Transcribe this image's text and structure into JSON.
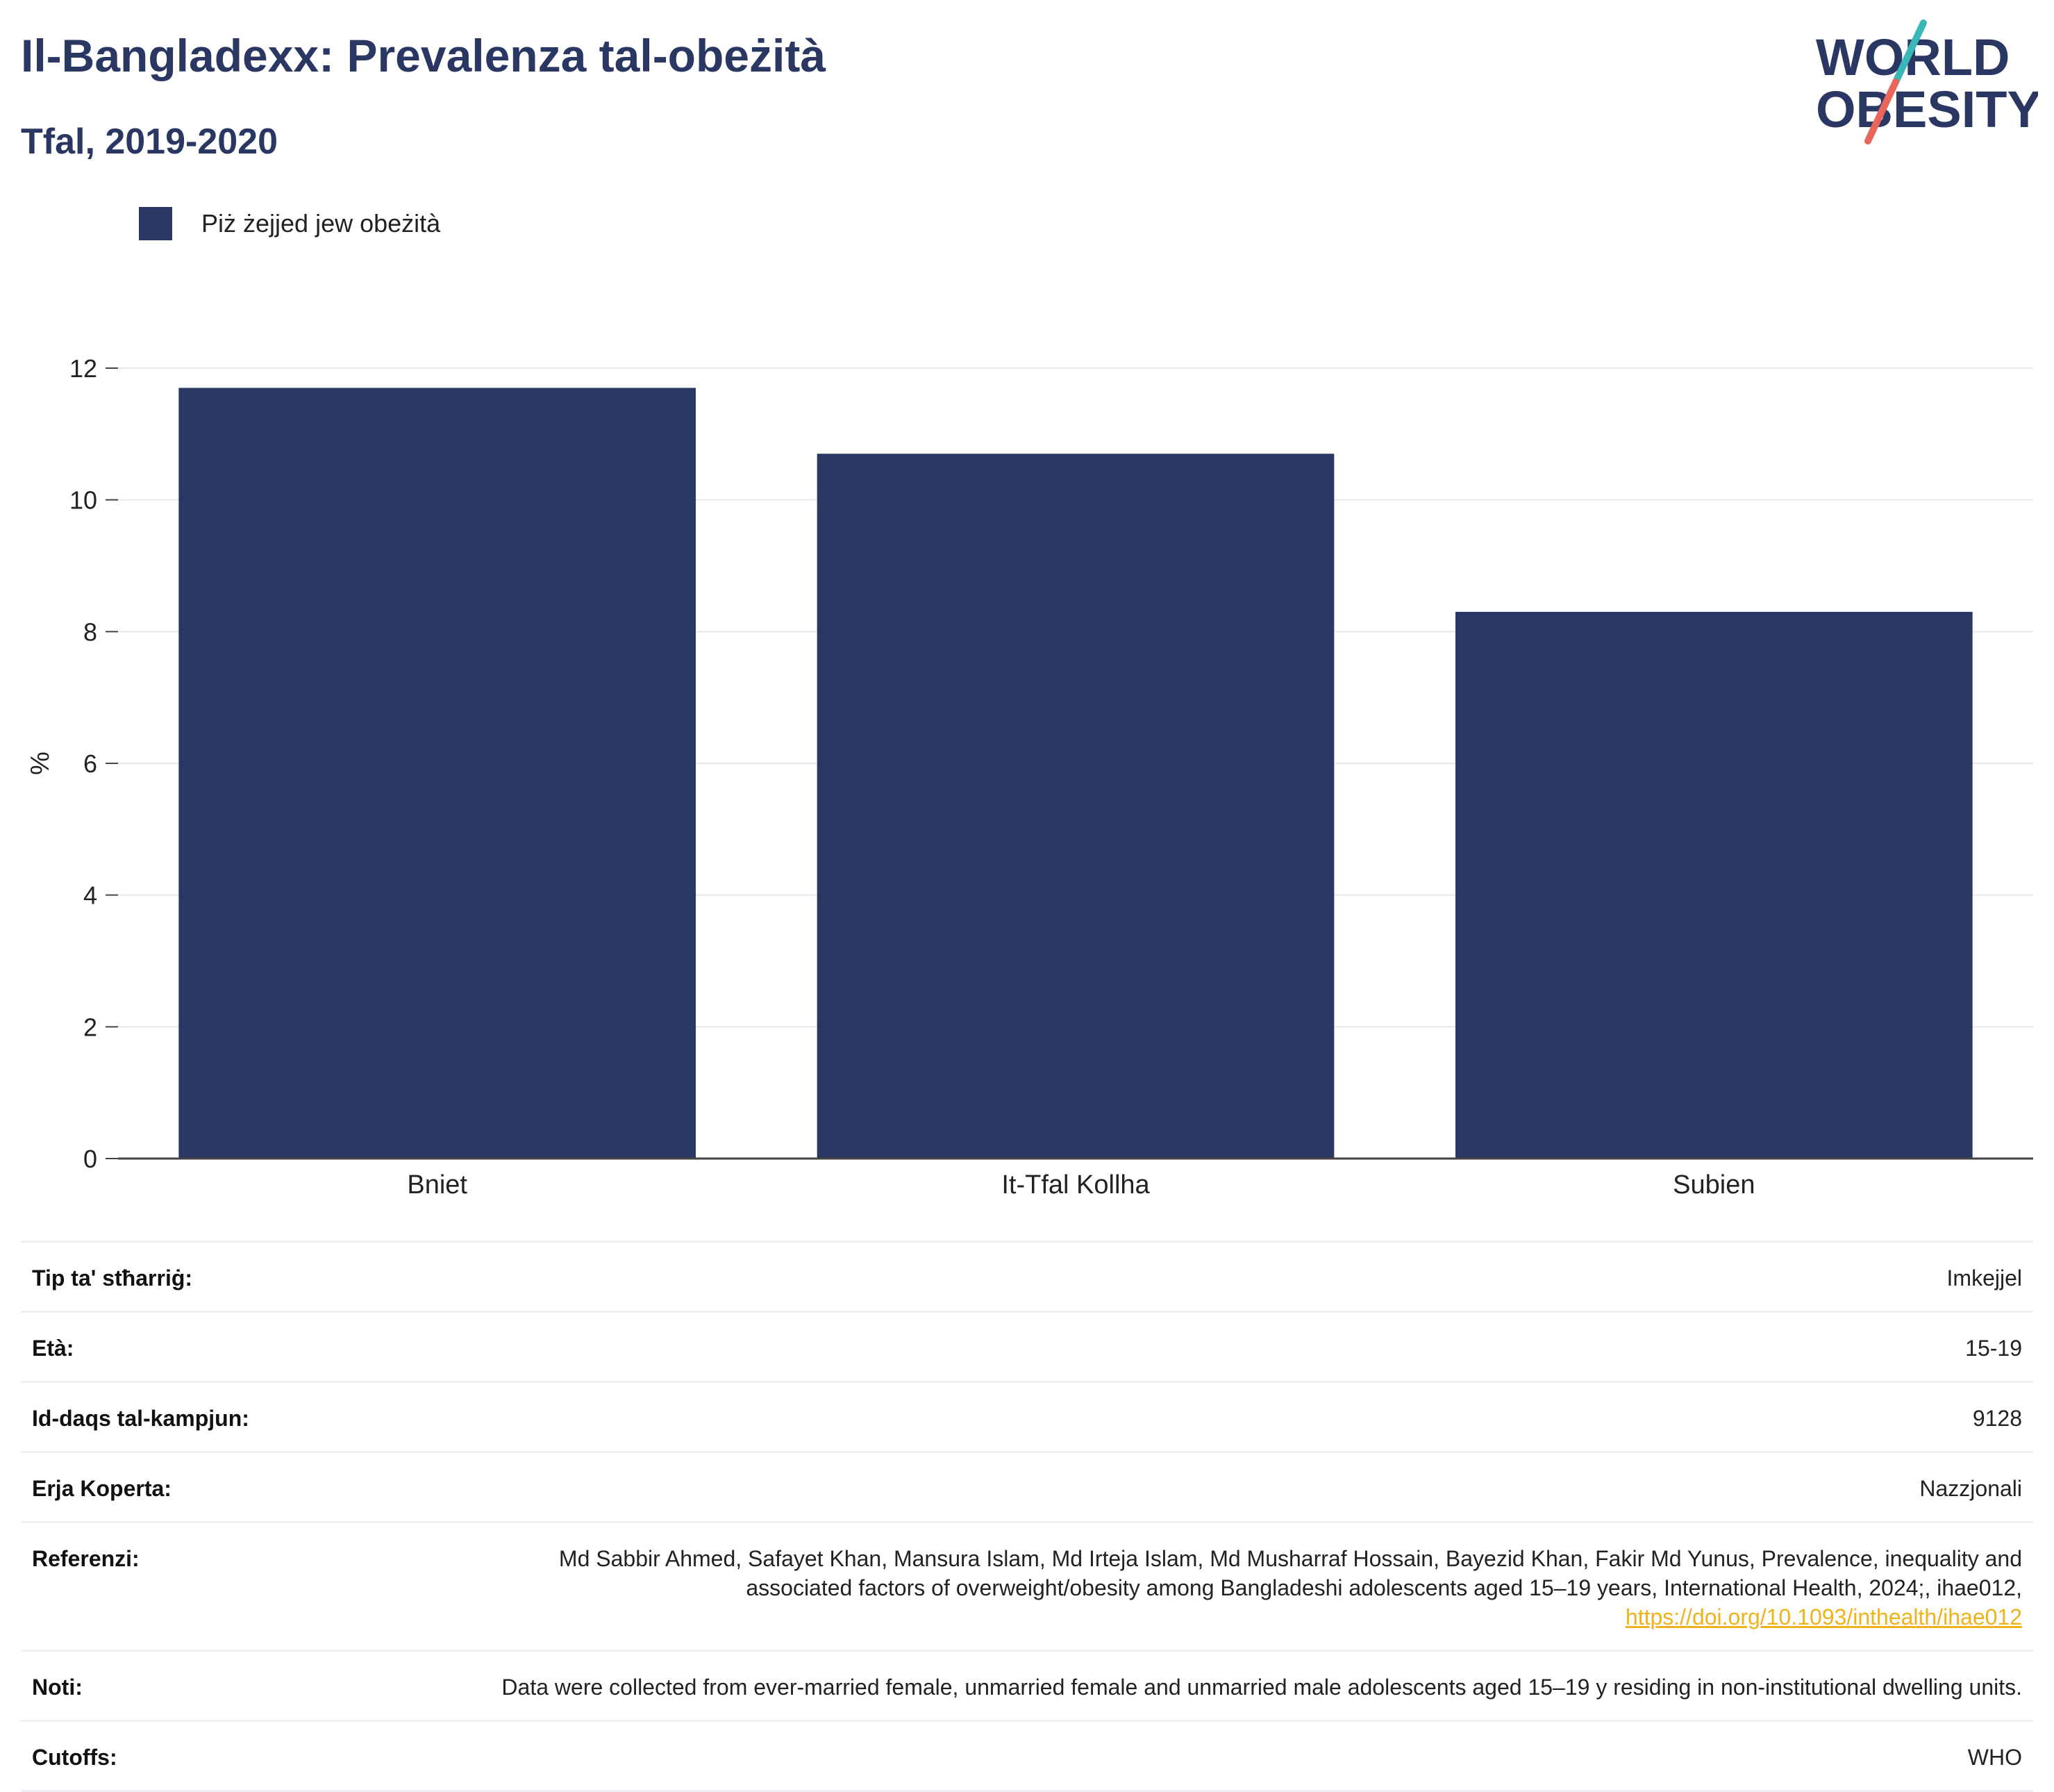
{
  "header": {
    "title": "Il-Bangladexx: Prevalenza tal-obeżità",
    "subtitle": "Tfal, 2019-2020"
  },
  "logo": {
    "line1": "WORLD",
    "line2": "OBESITY",
    "accent_teal": "#3ab8b8",
    "accent_coral": "#e8665a"
  },
  "legend": {
    "label": "Piż żejjed jew obeżità"
  },
  "colors": {
    "bar": "#2b3763",
    "title": "#2b3763",
    "link": "#f0b21a"
  },
  "chart_data": {
    "type": "bar",
    "categories": [
      "Bniet",
      "It-Tfal Kollha",
      "Subien"
    ],
    "series": [
      {
        "name": "Piż żejjed jew obeżità",
        "values": [
          11.7,
          10.7,
          8.3
        ]
      }
    ],
    "ylabel": "%",
    "ylim": [
      0,
      12
    ],
    "yticks": [
      0,
      2,
      4,
      6,
      8,
      10,
      12
    ],
    "grid": true,
    "legend_position": "top-left"
  },
  "meta": {
    "survey_type_label": "Tip ta' stħarriġ:",
    "survey_type_value": "Imkejjel",
    "age_label": "Età:",
    "age_value": "15-19",
    "sample_label": "Id-daqs tal-kampjun:",
    "sample_value": "9128",
    "area_label": "Erja Koperta:",
    "area_value": "Nazzjonali",
    "references_label": "Referenzi:",
    "references_value": "Md Sabbir Ahmed, Safayet Khan, Mansura Islam, Md Irteja Islam, Md Musharraf Hossain, Bayezid Khan, Fakir Md Yunus, Prevalence, inequality and associated factors of overweight/obesity among Bangladeshi adolescents aged 15–19 years, International Health, 2024;, ihae012,",
    "references_link": "https://doi.org/10.1093/inthealth/ihae012",
    "notes_label": "Noti:",
    "notes_value": "Data were collected from ever-married female, unmarried female and unmarried male adolescents aged 15–19 y residing in non-institutional dwelling units.",
    "cutoffs_label": "Cutoffs:",
    "cutoffs_value": "WHO"
  }
}
